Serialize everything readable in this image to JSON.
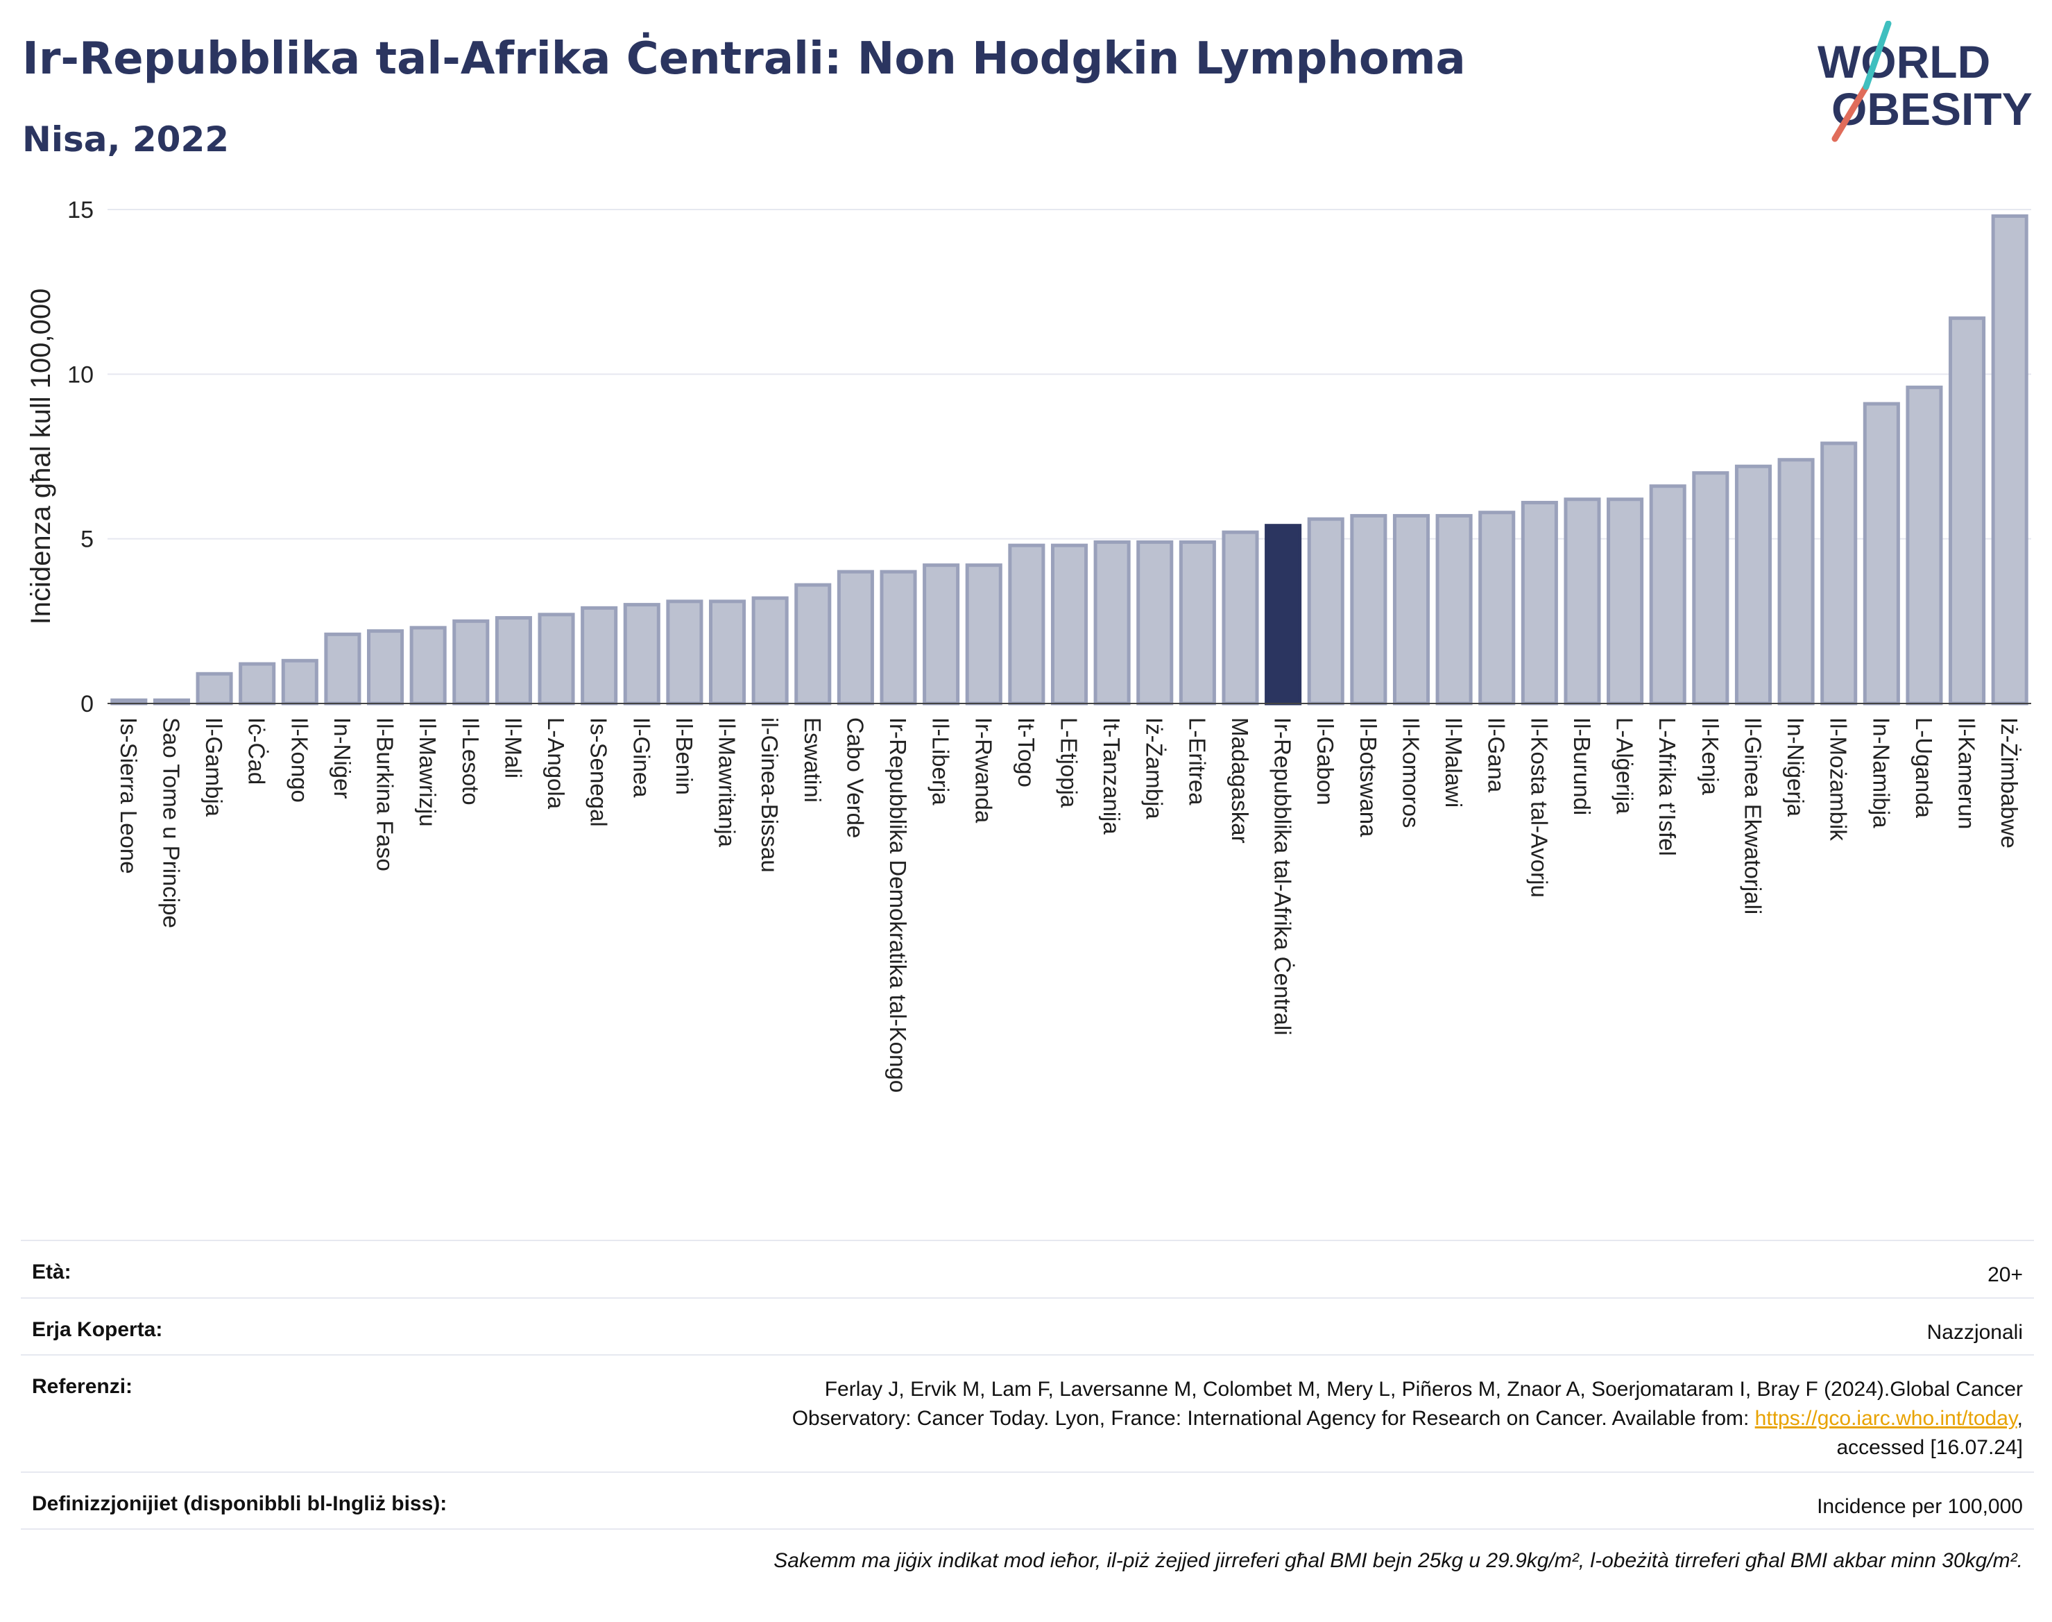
{
  "header": {
    "title": "Ir-Repubblika tal-Afrika Ċentrali: Non Hodgkin Lymphoma",
    "subtitle": "Nisa, 2022"
  },
  "logo": {
    "line1": "WORLD",
    "line2": "OBESITY"
  },
  "chart_data": {
    "type": "bar",
    "ylabel": "Inċidenza għal kull 100,000",
    "xlabel": "",
    "ylim": [
      0,
      15
    ],
    "yticks": [
      0,
      5,
      10,
      15
    ],
    "grid": true,
    "highlight": "Ir-Repubblika tal-Afrika Ċentrali",
    "colors": {
      "bar": "#bcc1d0",
      "bar_outline": "#9aa1bb",
      "highlight": "#2b3560"
    },
    "categories": [
      "Is-Sierra Leone",
      "Sao Tome u Principe",
      "Il-Gambja",
      "Iċ-Ċad",
      "Il-Kongo",
      "In-Niġer",
      "Il-Burkina Faso",
      "Il-Mawrizju",
      "Il-Lesoto",
      "Il-Mali",
      "L-Angola",
      "Is-Senegal",
      "Il-Ginea",
      "Il-Benin",
      "Il-Mawritanja",
      "il-Ginea-Bissau",
      "Eswatini",
      "Cabo Verde",
      "Ir-Repubblika Demokratika tal-Kongo",
      "Il-Liberja",
      "Ir-Rwanda",
      "It-Togo",
      "L-Etjopja",
      "It-Tanzanija",
      "Iż-Żambja",
      "L-Eritrea",
      "Madagaskar",
      "Ir-Repubblika tal-Afrika Ċentrali",
      "Il-Gabon",
      "Il-Botswana",
      "Il-Komoros",
      "Il-Malawi",
      "Il-Gana",
      "Il-Kosta tal-Avorju",
      "Il-Burundi",
      "L-Alġerija",
      "L-Afrika t’Isfel",
      "Il-Kenja",
      "Il-Ginea Ekwatorjali",
      "In-Niġerja",
      "Il-Możambik",
      "In-Namibja",
      "L-Uganda",
      "Il-Kamerun",
      "Iż-Żimbabwe"
    ],
    "values": [
      0.1,
      0.1,
      0.9,
      1.2,
      1.3,
      2.1,
      2.2,
      2.3,
      2.5,
      2.6,
      2.7,
      2.9,
      3.0,
      3.1,
      3.1,
      3.2,
      3.6,
      4.0,
      4.0,
      4.2,
      4.2,
      4.8,
      4.8,
      4.9,
      4.9,
      4.9,
      5.2,
      5.4,
      5.6,
      5.7,
      5.7,
      5.7,
      5.8,
      6.1,
      6.2,
      6.2,
      6.6,
      7.0,
      7.2,
      7.4,
      7.9,
      9.1,
      9.6,
      11.7,
      14.8
    ]
  },
  "info": {
    "age_label": "Età:",
    "age_value": "20+",
    "area_label": "Erja Koperta:",
    "area_value": "Nazzjonali",
    "ref_label": "Referenzi:",
    "ref_text_1": "Ferlay J, Ervik M, Lam F, Laversanne M, Colombet M, Mery L, Piñeros M, Znaor A, Soerjomataram I, Bray F (2024).Global Cancer",
    "ref_text_2": "Observatory: Cancer Today. Lyon, France: International Agency for Research on Cancer. Available from: ",
    "ref_link": "https://gco.iarc.who.int/today",
    "ref_text_3": ",",
    "ref_text_4": "accessed [16.07.24]",
    "def_label": "Definizzjonijiet (disponibbli bl-Ingliż biss):",
    "def_value": "Incidence per 100,000",
    "footnote": "Sakemm ma jiġix indikat mod ieħor, il-piż żejjed jirreferi għal BMI bejn 25kg u 29.9kg/m², l-obeżità tirreferi għal BMI akbar minn 30kg/m²."
  }
}
